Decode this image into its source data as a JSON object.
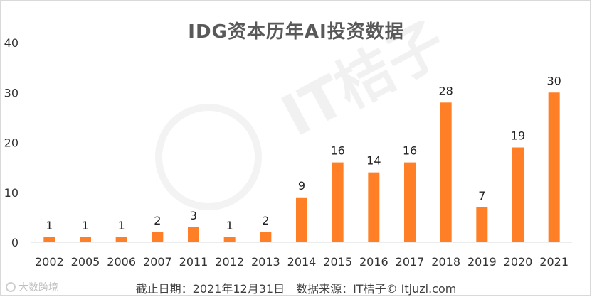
{
  "chart_data": {
    "type": "bar",
    "title": "IDG资本历年AI投资数据",
    "categories": [
      "2002",
      "2005",
      "2006",
      "2007",
      "2011",
      "2012",
      "2013",
      "2014",
      "2015",
      "2016",
      "2017",
      "2018",
      "2019",
      "2020",
      "2021"
    ],
    "values": [
      1,
      1,
      1,
      2,
      3,
      1,
      2,
      9,
      16,
      14,
      16,
      28,
      7,
      19,
      30
    ],
    "ylim": [
      0,
      40
    ],
    "yticks": [
      0,
      10,
      20,
      30,
      40
    ],
    "xlabel": "",
    "ylabel": "",
    "grid": false,
    "bar_color": "#ff7f27",
    "data_labels": true
  },
  "footnote": "截止日期：2021年12月31日　数据来源：IT桔子© Itjuzi.com",
  "brand": "大数跨境",
  "watermark": {
    "text": "IT桔子",
    "subtext": "ITJUZI.COM"
  }
}
